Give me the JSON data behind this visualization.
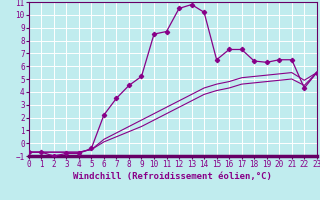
{
  "xlabel": "Windchill (Refroidissement éolien,°C)",
  "bg_color": "#c0ecee",
  "plot_bg_color": "#c0ecee",
  "grid_color": "#ffffff",
  "line_color": "#880088",
  "axis_color": "#660066",
  "xlim": [
    0,
    23
  ],
  "ylim": [
    -1,
    11
  ],
  "xticks": [
    0,
    1,
    2,
    3,
    4,
    5,
    6,
    7,
    8,
    9,
    10,
    11,
    12,
    13,
    14,
    15,
    16,
    17,
    18,
    19,
    20,
    21,
    22,
    23
  ],
  "yticks": [
    -1,
    0,
    1,
    2,
    3,
    4,
    5,
    6,
    7,
    8,
    9,
    10,
    11
  ],
  "line1_x": [
    0,
    1,
    2,
    3,
    4,
    5,
    6,
    7,
    8,
    9,
    10,
    11,
    12,
    13,
    14,
    15,
    16,
    17,
    18,
    19,
    20,
    21,
    22,
    23
  ],
  "line1_y": [
    -0.7,
    -0.7,
    -1.0,
    -0.8,
    -0.8,
    -0.4,
    2.2,
    3.5,
    4.5,
    5.2,
    8.5,
    8.7,
    10.5,
    10.8,
    10.2,
    6.5,
    7.3,
    7.3,
    6.4,
    6.3,
    6.5,
    6.5,
    4.3,
    5.5
  ],
  "line2_x": [
    0,
    1,
    2,
    3,
    4,
    5,
    6,
    7,
    8,
    9,
    10,
    11,
    12,
    13,
    14,
    15,
    16,
    17,
    18,
    19,
    20,
    21,
    22,
    23
  ],
  "line2_y": [
    -0.7,
    -0.7,
    -0.7,
    -0.7,
    -0.7,
    -0.5,
    0.3,
    0.8,
    1.3,
    1.8,
    2.3,
    2.8,
    3.3,
    3.8,
    4.3,
    4.6,
    4.8,
    5.1,
    5.2,
    5.3,
    5.4,
    5.5,
    4.9,
    5.5
  ],
  "line3_x": [
    0,
    1,
    2,
    3,
    4,
    5,
    6,
    7,
    8,
    9,
    10,
    11,
    12,
    13,
    14,
    15,
    16,
    17,
    18,
    19,
    20,
    21,
    22,
    23
  ],
  "line3_y": [
    -0.7,
    -0.7,
    -0.7,
    -0.7,
    -0.7,
    -0.5,
    0.1,
    0.5,
    0.9,
    1.3,
    1.8,
    2.3,
    2.8,
    3.3,
    3.8,
    4.1,
    4.3,
    4.6,
    4.7,
    4.8,
    4.9,
    5.0,
    4.5,
    5.5
  ],
  "font_color": "#880088",
  "tick_fontsize": 5.5,
  "xlabel_fontsize": 6.5
}
